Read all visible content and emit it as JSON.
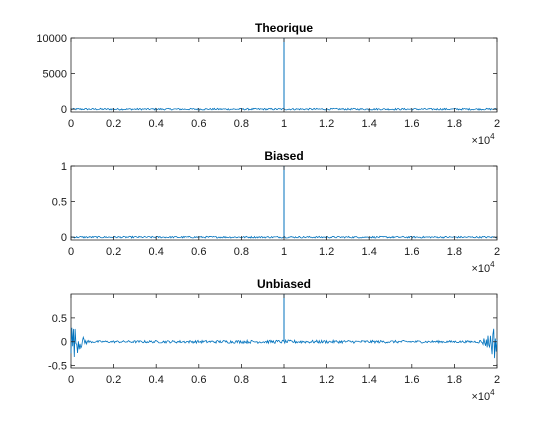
{
  "chart_data": [
    {
      "type": "line",
      "title": "Theorique",
      "xlim": [
        0,
        20000
      ],
      "ylim": [
        -400,
        10000
      ],
      "x_ticks": [
        0,
        2000,
        4000,
        6000,
        8000,
        10000,
        12000,
        14000,
        16000,
        18000,
        20000
      ],
      "x_tick_labels": [
        "0",
        "0.2",
        "0.4",
        "0.6",
        "0.8",
        "1",
        "1.2",
        "1.4",
        "1.6",
        "1.8",
        "2"
      ],
      "x_exponent_label": "×10",
      "x_exponent": "4",
      "y_ticks": [
        0,
        5000,
        10000
      ],
      "y_tick_labels": [
        "0",
        "5000",
        "10000"
      ],
      "series": [
        {
          "color": "#0072bd",
          "spike_x": 10000,
          "spike_y": 10000,
          "baseline": 0,
          "noise_amplitude": 120,
          "edge_growth": 0
        }
      ]
    },
    {
      "type": "line",
      "title": "Biased",
      "xlim": [
        0,
        20000
      ],
      "ylim": [
        -0.04,
        1
      ],
      "x_ticks": [
        0,
        2000,
        4000,
        6000,
        8000,
        10000,
        12000,
        14000,
        16000,
        18000,
        20000
      ],
      "x_tick_labels": [
        "0",
        "0.2",
        "0.4",
        "0.6",
        "0.8",
        "1",
        "1.2",
        "1.4",
        "1.6",
        "1.8",
        "2"
      ],
      "x_exponent_label": "×10",
      "x_exponent": "4",
      "y_ticks": [
        0,
        0.5,
        1
      ],
      "y_tick_labels": [
        "0",
        "0.5",
        "1"
      ],
      "series": [
        {
          "color": "#0072bd",
          "spike_x": 10000,
          "spike_y": 1,
          "baseline": 0,
          "noise_amplitude": 0.012,
          "edge_growth": 0
        }
      ]
    },
    {
      "type": "line",
      "title": "Unbiased",
      "xlim": [
        0,
        20000
      ],
      "ylim": [
        -0.55,
        1
      ],
      "x_ticks": [
        0,
        2000,
        4000,
        6000,
        8000,
        10000,
        12000,
        14000,
        16000,
        18000,
        20000
      ],
      "x_tick_labels": [
        "0",
        "0.2",
        "0.4",
        "0.6",
        "0.8",
        "1",
        "1.2",
        "1.4",
        "1.6",
        "1.8",
        "2"
      ],
      "x_exponent_label": "×10",
      "x_exponent": "4",
      "y_ticks": [
        -0.5,
        0,
        0.5
      ],
      "y_tick_labels": [
        "-0.5",
        "0",
        "0.5"
      ],
      "series": [
        {
          "color": "#0072bd",
          "spike_x": 10000,
          "spike_y": 1,
          "baseline": 0,
          "noise_amplitude": 0.035,
          "edge_growth": 0.45
        }
      ]
    }
  ]
}
